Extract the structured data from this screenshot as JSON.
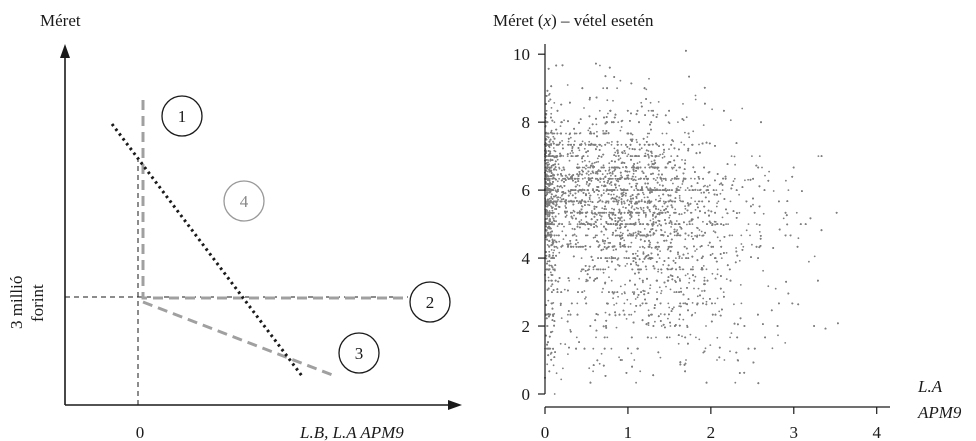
{
  "chart_data": [
    {
      "type": "diagram",
      "ylabel": "Méret",
      "xlabel": "L.B, L.A APM9",
      "x_tick": "0",
      "hline_label_line1": "3 millió",
      "hline_label_line2": "forint",
      "regions": [
        {
          "label": "1",
          "color": "#1a1a1a"
        },
        {
          "label": "2",
          "color": "#1a1a1a"
        },
        {
          "label": "3",
          "color": "#1a1a1a"
        },
        {
          "label": "4",
          "color": "#999999"
        }
      ],
      "line_colors": {
        "dotted": "#1a1a1a",
        "dashed": "#a0a0a0"
      }
    },
    {
      "type": "scatter",
      "title_prefix": "Méret (",
      "title_var": "x",
      "title_suffix": ") – vétel esetén",
      "xlabel_line1": "L.A",
      "xlabel_line2": "APM9",
      "xlim": [
        0,
        4.1
      ],
      "ylim": [
        0,
        10.3
      ],
      "xticks": [
        "0",
        "1",
        "2",
        "3",
        "4"
      ],
      "yticks": [
        "0",
        "2",
        "4",
        "6",
        "8",
        "10"
      ],
      "point_color": "#7f7f7f",
      "n_points": 9000,
      "clusters": [
        {
          "x_center": 1.0,
          "y_center": 5.8,
          "x_spread": 0.5,
          "y_spread": 1.3,
          "weight": 0.45
        },
        {
          "x_center": 0.3,
          "y_center": 6.3,
          "x_spread": 0.4,
          "y_spread": 1.0,
          "weight": 0.2
        },
        {
          "x_center": 1.6,
          "y_center": 4.8,
          "x_spread": 0.7,
          "y_spread": 1.5,
          "weight": 0.25
        },
        {
          "x_center": 1.2,
          "y_center": 2.0,
          "x_spread": 0.8,
          "y_spread": 1.0,
          "weight": 0.1
        }
      ]
    }
  ]
}
